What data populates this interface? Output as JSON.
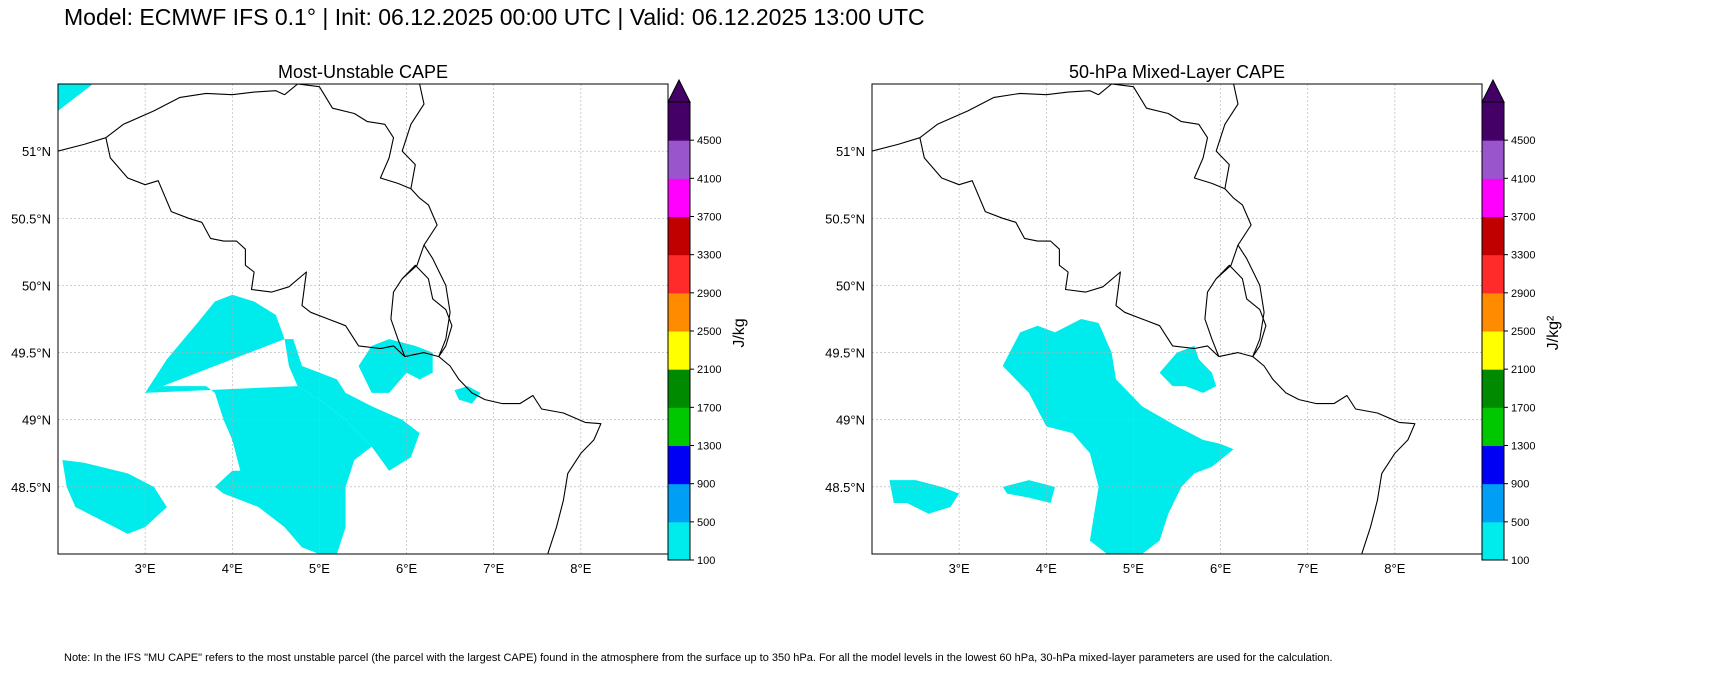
{
  "header": {
    "title": "Model: ECMWF IFS 0.1° | Init: 06.12.2025 00:00 UTC | Valid: 06.12.2025 13:00 UTC"
  },
  "footer": {
    "note": "Note: In the IFS \"MU CAPE\" refers to the most unstable parcel (the parcel with the largest CAPE) found in the atmosphere from the surface up to 350 hPa. For all the model levels in the lowest 60 hPa, 30-hPa mixed-layer parameters are used for the calculation."
  },
  "map_extent": {
    "lon": [
      2.0,
      9.0
    ],
    "lat": [
      48.0,
      51.5
    ]
  },
  "lon_ticks": [
    {
      "value": 3,
      "label": "3°E"
    },
    {
      "value": 4,
      "label": "4°E"
    },
    {
      "value": 5,
      "label": "5°E"
    },
    {
      "value": 6,
      "label": "6°E"
    },
    {
      "value": 7,
      "label": "7°E"
    },
    {
      "value": 8,
      "label": "8°E"
    }
  ],
  "lat_ticks": [
    {
      "value": 51,
      "label": "51°N"
    },
    {
      "value": 50.5,
      "label": "50.5°N"
    },
    {
      "value": 50,
      "label": "50°N"
    },
    {
      "value": 49.5,
      "label": "49.5°N"
    },
    {
      "value": 49,
      "label": "49°N"
    },
    {
      "value": 48.5,
      "label": "48.5°N"
    }
  ],
  "colorbar": {
    "levels": [
      100,
      500,
      900,
      1300,
      1700,
      2100,
      2500,
      2900,
      3300,
      3700,
      4100,
      4500
    ],
    "colors": [
      "#00ebeb",
      "#009ef5",
      "#0000f5",
      "#00c800",
      "#008a00",
      "#ffff00",
      "#ff8c00",
      "#ff2a2a",
      "#c00000",
      "#ff00ff",
      "#9955cc"
    ],
    "extend_color": "#440066"
  },
  "panels": [
    {
      "title": "Most-Unstable CAPE",
      "unit_label": "J/kg",
      "fill_color": "#00ebeb",
      "cape_areas": [
        [
          [
            2.0,
            51.3
          ],
          [
            2.4,
            51.5
          ],
          [
            2.0,
            51.5
          ]
        ],
        [
          [
            3.0,
            49.2
          ],
          [
            3.25,
            49.45
          ],
          [
            3.6,
            49.72
          ],
          [
            3.8,
            49.88
          ],
          [
            4.0,
            49.93
          ],
          [
            4.25,
            49.88
          ],
          [
            4.5,
            49.78
          ],
          [
            4.6,
            49.6
          ],
          [
            4.65,
            49.4
          ],
          [
            4.75,
            49.25
          ],
          [
            5.0,
            49.15
          ],
          [
            5.3,
            49.0
          ],
          [
            5.6,
            48.8
          ],
          [
            5.8,
            48.62
          ],
          [
            6.05,
            48.72
          ],
          [
            6.15,
            48.9
          ],
          [
            5.95,
            49.0
          ],
          [
            5.6,
            49.1
          ],
          [
            5.3,
            49.2
          ],
          [
            5.2,
            49.3
          ],
          [
            4.8,
            49.4
          ],
          [
            4.7,
            49.6
          ],
          [
            4.6,
            49.6
          ]
        ],
        [
          [
            3.0,
            49.2
          ],
          [
            3.2,
            49.25
          ],
          [
            3.7,
            49.25
          ],
          [
            3.8,
            49.2
          ],
          [
            3.9,
            49.0
          ],
          [
            4.0,
            48.85
          ],
          [
            4.1,
            48.6
          ],
          [
            4.3,
            48.35
          ],
          [
            4.6,
            48.2
          ],
          [
            4.8,
            48.05
          ],
          [
            5.0,
            48.0
          ],
          [
            5.2,
            48.0
          ],
          [
            5.3,
            48.2
          ],
          [
            5.3,
            48.5
          ],
          [
            5.4,
            48.7
          ],
          [
            5.6,
            48.8
          ],
          [
            5.3,
            49.0
          ],
          [
            5.0,
            49.15
          ],
          [
            4.75,
            49.25
          ]
        ],
        [
          [
            3.8,
            48.5
          ],
          [
            4.0,
            48.62
          ],
          [
            4.6,
            48.62
          ],
          [
            4.65,
            48.4
          ],
          [
            4.3,
            48.35
          ],
          [
            4.1,
            48.4
          ],
          [
            3.9,
            48.45
          ]
        ],
        [
          [
            4.6,
            48.2
          ],
          [
            4.8,
            48.05
          ],
          [
            5.0,
            48.0
          ],
          [
            5.2,
            48.0
          ],
          [
            5.1,
            48.15
          ],
          [
            4.9,
            48.25
          ],
          [
            4.75,
            48.3
          ]
        ],
        [
          [
            2.05,
            48.7
          ],
          [
            2.3,
            48.68
          ],
          [
            2.8,
            48.6
          ],
          [
            3.1,
            48.5
          ],
          [
            3.25,
            48.35
          ],
          [
            3.0,
            48.2
          ],
          [
            2.8,
            48.15
          ],
          [
            2.5,
            48.25
          ],
          [
            2.2,
            48.35
          ],
          [
            2.1,
            48.5
          ]
        ],
        [
          [
            5.45,
            49.4
          ],
          [
            5.6,
            49.55
          ],
          [
            5.8,
            49.6
          ],
          [
            6.1,
            49.55
          ],
          [
            6.3,
            49.5
          ],
          [
            6.3,
            49.35
          ],
          [
            6.15,
            49.3
          ],
          [
            6.0,
            49.35
          ],
          [
            5.8,
            49.2
          ],
          [
            5.6,
            49.2
          ]
        ],
        [
          [
            6.55,
            49.22
          ],
          [
            6.7,
            49.25
          ],
          [
            6.85,
            49.2
          ],
          [
            6.75,
            49.12
          ],
          [
            6.6,
            49.15
          ]
        ]
      ]
    },
    {
      "title": "50-hPa Mixed-Layer CAPE",
      "unit_label": "J/kg²",
      "fill_color": "#00ebeb",
      "cape_areas": [
        [
          [
            3.5,
            49.4
          ],
          [
            3.7,
            49.65
          ],
          [
            3.9,
            49.7
          ],
          [
            4.1,
            49.65
          ],
          [
            4.4,
            49.75
          ],
          [
            4.6,
            49.72
          ],
          [
            4.75,
            49.5
          ],
          [
            4.8,
            49.3
          ],
          [
            5.1,
            49.1
          ],
          [
            5.5,
            48.95
          ],
          [
            5.8,
            48.85
          ],
          [
            6.0,
            48.82
          ],
          [
            6.15,
            48.78
          ],
          [
            5.9,
            48.65
          ],
          [
            5.7,
            48.6
          ],
          [
            5.55,
            48.5
          ],
          [
            5.4,
            48.3
          ],
          [
            5.3,
            48.1
          ],
          [
            5.1,
            48.0
          ],
          [
            4.7,
            48.0
          ],
          [
            4.5,
            48.1
          ],
          [
            4.55,
            48.3
          ],
          [
            4.6,
            48.5
          ],
          [
            4.5,
            48.75
          ],
          [
            4.3,
            48.9
          ],
          [
            4.0,
            48.95
          ],
          [
            3.8,
            49.2
          ]
        ],
        [
          [
            4.5,
            48.1
          ],
          [
            4.7,
            48.0
          ],
          [
            5.1,
            48.0
          ],
          [
            4.9,
            48.1
          ],
          [
            4.7,
            48.15
          ]
        ],
        [
          [
            2.2,
            48.55
          ],
          [
            2.5,
            48.55
          ],
          [
            2.8,
            48.5
          ],
          [
            3.0,
            48.45
          ],
          [
            2.9,
            48.35
          ],
          [
            2.65,
            48.3
          ],
          [
            2.4,
            48.38
          ],
          [
            2.25,
            48.38
          ]
        ],
        [
          [
            3.5,
            48.5
          ],
          [
            3.8,
            48.55
          ],
          [
            4.1,
            48.5
          ],
          [
            4.05,
            48.38
          ],
          [
            3.8,
            48.42
          ],
          [
            3.55,
            48.45
          ]
        ],
        [
          [
            5.3,
            49.35
          ],
          [
            5.5,
            49.5
          ],
          [
            5.7,
            49.55
          ],
          [
            5.75,
            49.45
          ],
          [
            5.9,
            49.35
          ],
          [
            5.95,
            49.25
          ],
          [
            5.8,
            49.2
          ],
          [
            5.6,
            49.25
          ],
          [
            5.45,
            49.25
          ]
        ]
      ]
    }
  ],
  "borders": [
    [
      [
        2.0,
        51.0
      ],
      [
        2.3,
        51.05
      ],
      [
        2.55,
        51.1
      ],
      [
        2.75,
        51.2
      ],
      [
        3.1,
        51.3
      ],
      [
        3.4,
        51.4
      ],
      [
        3.7,
        51.43
      ],
      [
        4.0,
        51.42
      ],
      [
        4.25,
        51.44
      ],
      [
        4.5,
        51.45
      ],
      [
        4.6,
        51.42
      ]
    ],
    [
      [
        2.55,
        51.1
      ],
      [
        2.6,
        50.95
      ],
      [
        2.8,
        50.8
      ],
      [
        3.0,
        50.75
      ],
      [
        3.15,
        50.78
      ],
      [
        3.3,
        50.55
      ],
      [
        3.5,
        50.5
      ],
      [
        3.65,
        50.47
      ],
      [
        3.75,
        50.35
      ],
      [
        3.9,
        50.33
      ],
      [
        4.05,
        50.33
      ],
      [
        4.15,
        50.27
      ],
      [
        4.15,
        50.15
      ],
      [
        4.25,
        50.1
      ],
      [
        4.22,
        49.97
      ],
      [
        4.45,
        49.95
      ],
      [
        4.65,
        49.99
      ],
      [
        4.85,
        50.1
      ],
      [
        4.8,
        49.85
      ],
      [
        4.9,
        49.8
      ],
      [
        5.1,
        49.75
      ],
      [
        5.3,
        49.7
      ],
      [
        5.45,
        49.55
      ],
      [
        5.7,
        49.53
      ],
      [
        5.85,
        49.55
      ],
      [
        5.98,
        49.47
      ]
    ],
    [
      [
        4.6,
        51.42
      ],
      [
        4.75,
        51.5
      ],
      [
        5.0,
        51.48
      ],
      [
        5.15,
        51.32
      ],
      [
        5.4,
        51.28
      ],
      [
        5.55,
        51.22
      ],
      [
        5.75,
        51.2
      ],
      [
        5.85,
        51.1
      ],
      [
        5.8,
        50.95
      ],
      [
        5.7,
        50.8
      ],
      [
        5.9,
        50.76
      ],
      [
        6.05,
        50.72
      ],
      [
        6.15,
        50.65
      ],
      [
        6.25,
        50.6
      ],
      [
        6.35,
        50.45
      ],
      [
        6.2,
        50.3
      ],
      [
        6.12,
        50.15
      ],
      [
        5.95,
        50.05
      ]
    ],
    [
      [
        5.95,
        50.05
      ],
      [
        5.85,
        49.95
      ],
      [
        5.82,
        49.75
      ],
      [
        5.9,
        49.6
      ],
      [
        5.98,
        49.47
      ]
    ],
    [
      [
        5.95,
        50.05
      ],
      [
        6.1,
        50.15
      ],
      [
        6.25,
        50.05
      ],
      [
        6.3,
        49.9
      ],
      [
        6.45,
        49.82
      ],
      [
        6.52,
        49.7
      ],
      [
        6.45,
        49.55
      ],
      [
        6.37,
        49.47
      ]
    ],
    [
      [
        5.98,
        49.47
      ],
      [
        6.2,
        49.5
      ],
      [
        6.37,
        49.47
      ],
      [
        6.5,
        49.4
      ],
      [
        6.6,
        49.3
      ],
      [
        6.75,
        49.2
      ],
      [
        6.9,
        49.15
      ],
      [
        7.1,
        49.12
      ],
      [
        7.3,
        49.12
      ],
      [
        7.45,
        49.18
      ],
      [
        7.55,
        49.08
      ],
      [
        7.8,
        49.05
      ],
      [
        8.05,
        48.98
      ],
      [
        8.23,
        48.97
      ],
      [
        8.15,
        48.85
      ],
      [
        8.0,
        48.75
      ],
      [
        7.85,
        48.6
      ],
      [
        7.8,
        48.4
      ],
      [
        7.72,
        48.2
      ],
      [
        7.62,
        48.0
      ]
    ],
    [
      [
        6.37,
        49.47
      ],
      [
        6.45,
        49.6
      ],
      [
        6.5,
        49.8
      ],
      [
        6.45,
        50.0
      ],
      [
        6.3,
        50.2
      ],
      [
        6.2,
        50.3
      ]
    ],
    [
      [
        6.05,
        50.72
      ],
      [
        6.1,
        50.9
      ],
      [
        5.95,
        51.0
      ],
      [
        6.05,
        51.2
      ],
      [
        6.2,
        51.35
      ],
      [
        6.15,
        51.5
      ]
    ]
  ]
}
